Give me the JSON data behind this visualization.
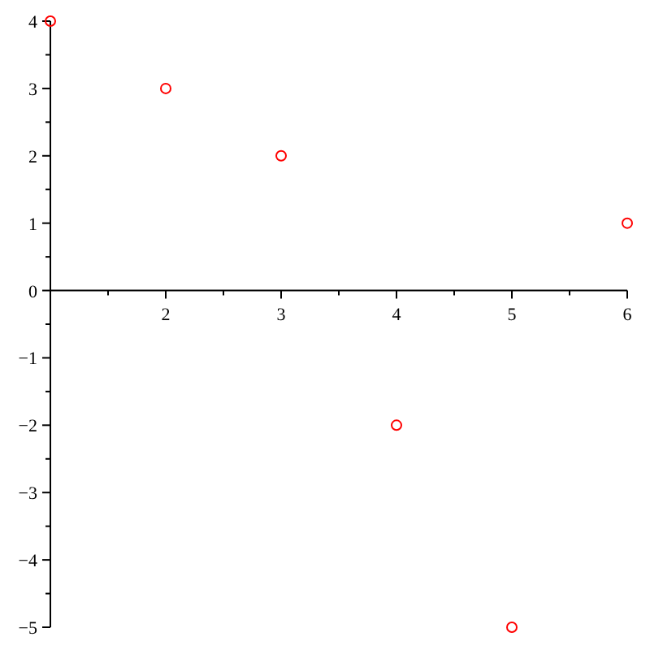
{
  "chart_data": {
    "type": "scatter",
    "x": [
      1,
      2,
      3,
      4,
      5,
      6
    ],
    "values": [
      4,
      3,
      2,
      -2,
      -5,
      1
    ],
    "color": "#ff0000",
    "marker": "circle",
    "grid": false,
    "xlim": [
      1,
      6
    ],
    "ylim": [
      -5,
      4
    ],
    "xticks": [
      {
        "value": 1.5,
        "label": null
      },
      2,
      {
        "value": 2.5,
        "label": null
      },
      3,
      {
        "value": 3.5,
        "label": null
      },
      4,
      {
        "value": 4.5,
        "label": null
      },
      5,
      {
        "value": 5.5,
        "label": null
      },
      6
    ],
    "yticks": [
      -5,
      {
        "value": -4.5,
        "label": null
      },
      -4,
      {
        "value": -3.5,
        "label": null
      },
      -3,
      {
        "value": -2.5,
        "label": null
      },
      -2,
      {
        "value": -1.5,
        "label": null
      },
      -1,
      {
        "value": -0.5,
        "label": null
      },
      0,
      {
        "value": 0.5,
        "label": null
      },
      1,
      {
        "value": 1.5,
        "label": null
      },
      2,
      {
        "value": 2.5,
        "label": null
      },
      3,
      {
        "value": 3.5,
        "label": null
      },
      4
    ]
  }
}
